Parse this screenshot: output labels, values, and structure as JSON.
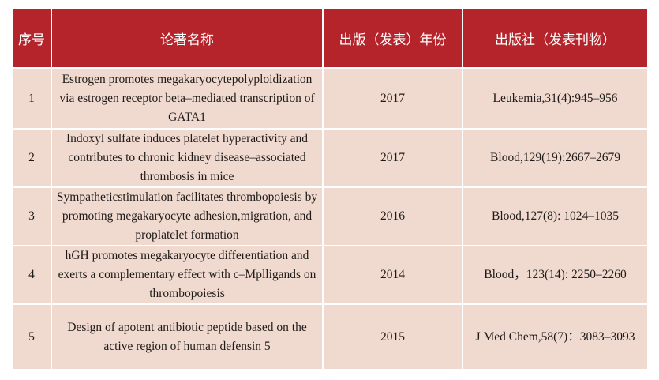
{
  "table": {
    "headers": [
      "序号",
      "论著名称",
      "出版（发表）年份",
      "出版社（发表刊物）"
    ],
    "rows": [
      {
        "no": "1",
        "title": "Estrogen promotes megakaryocytepolyploidization via estrogen receptor beta–mediated transcription of GATA1",
        "year": "2017",
        "publisher": "Leukemia,31(4):945–956"
      },
      {
        "no": "2",
        "title": "Indoxyl sulfate induces platelet hyperactivity and contributes to chronic kidney disease–associated thrombosis in mice",
        "year": "2017",
        "publisher": "Blood,129(19):2667–2679"
      },
      {
        "no": "3",
        "title": "Sympatheticstimulation facilitates thrombopoiesis by promoting megakaryocyte adhesion,migration, and proplatelet formation",
        "year": "2016",
        "publisher": "Blood,127(8): 1024–1035"
      },
      {
        "no": "4",
        "title": "hGH promotes megakaryocyte differentiation and exerts a complementary effect with c–Mplligands on thrombopoiesis",
        "year": "2014",
        "publisher": "Blood，123(14): 2250–2260"
      },
      {
        "no": "5",
        "title": "Design of apotent antibiotic peptide based on the active region of human defensin 5",
        "year": "2015",
        "publisher": "J Med Chem,58(7)：3083–3093"
      }
    ]
  },
  "colors": {
    "header_bg": "#b5242b",
    "cell_bg": "#f0dad0"
  }
}
